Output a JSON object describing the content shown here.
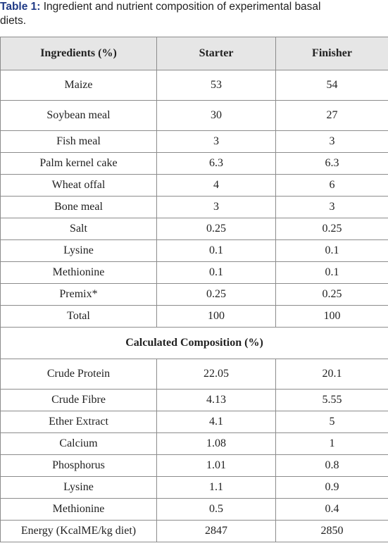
{
  "caption": {
    "label": "Table 1:",
    "line1": " Ingredient and nutrient composition of experimental basal",
    "line2": "diets."
  },
  "table": {
    "headers": [
      "Ingredients (%)",
      "Starter",
      "Finisher"
    ],
    "ingredients": [
      [
        "Maize",
        "53",
        "54"
      ],
      [
        "Soybean meal",
        "30",
        "27"
      ],
      [
        "Fish meal",
        "3",
        "3"
      ],
      [
        "Palm kernel cake",
        "6.3",
        "6.3"
      ],
      [
        "Wheat offal",
        "4",
        "6"
      ],
      [
        "Bone meal",
        "3",
        "3"
      ],
      [
        "Salt",
        "0.25",
        "0.25"
      ],
      [
        "Lysine",
        "0.1",
        "0.1"
      ],
      [
        "Methionine",
        "0.1",
        "0.1"
      ],
      [
        "Premix*",
        "0.25",
        "0.25"
      ],
      [
        "Total",
        "100",
        "100"
      ]
    ],
    "section_title": "Calculated Composition (%)",
    "composition": [
      [
        "Crude Protein",
        "22.05",
        "20.1"
      ],
      [
        "Crude Fibre",
        "4.13",
        "5.55"
      ],
      [
        "Ether Extract",
        "4.1",
        "5"
      ],
      [
        "Calcium",
        "1.08",
        "1"
      ],
      [
        "Phosphorus",
        "1.01",
        "0.8"
      ],
      [
        "Lysine",
        "1.1",
        "0.9"
      ],
      [
        "Methionine",
        "0.5",
        "0.4"
      ],
      [
        "Energy (KcalME/kg diet)",
        "2847",
        "2850"
      ]
    ]
  }
}
